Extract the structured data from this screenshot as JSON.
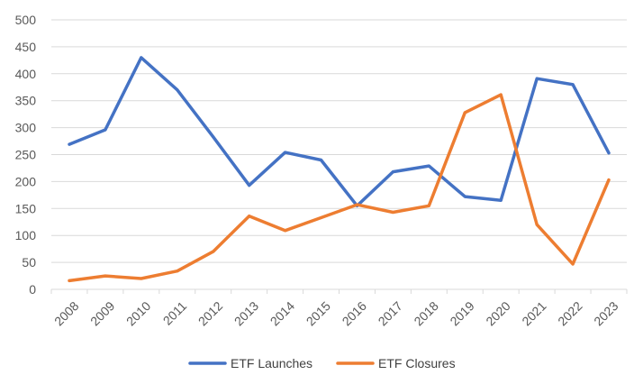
{
  "chart_data": {
    "type": "line",
    "title": "",
    "xlabel": "",
    "ylabel": "",
    "categories": [
      "2008",
      "2009",
      "2010",
      "2011",
      "2012",
      "2013",
      "2014",
      "2015",
      "2016",
      "2017",
      "2018",
      "2019",
      "2020",
      "2021",
      "2022",
      "2023"
    ],
    "ylim": [
      0,
      500
    ],
    "yticks": [
      0,
      50,
      100,
      150,
      200,
      250,
      300,
      350,
      400,
      450,
      500
    ],
    "grid": true,
    "legend_position": "bottom",
    "series": [
      {
        "name": "ETF Launches",
        "color": "#4472C4",
        "values": [
          269,
          296,
          430,
          370,
          283,
          193,
          254,
          240,
          155,
          218,
          229,
          172,
          165,
          391,
          380,
          253
        ]
      },
      {
        "name": "ETF Closures",
        "color": "#ED7D31",
        "values": [
          16,
          25,
          20,
          34,
          70,
          136,
          109,
          133,
          157,
          143,
          155,
          328,
          361,
          120,
          47,
          203
        ]
      }
    ]
  }
}
